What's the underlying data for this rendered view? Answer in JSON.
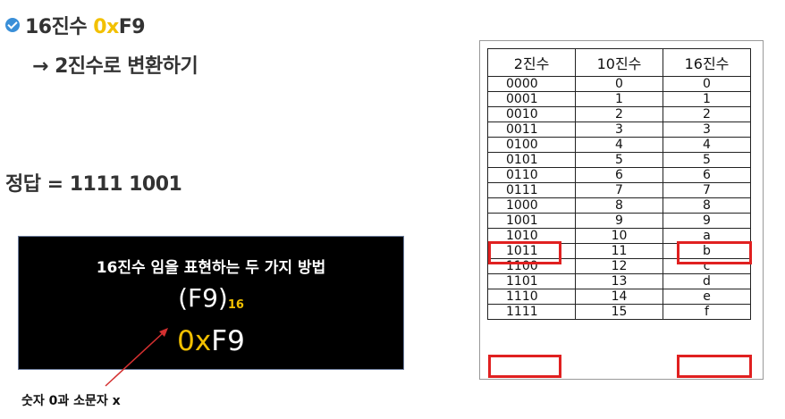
{
  "title": {
    "num": "16진수 ",
    "prefix": "0x",
    "rest": "F9"
  },
  "subtitle": "→ 2진수로 변환하기",
  "answer": "정답 = 1111 1001",
  "box": {
    "heading": "16진수 임을 표현하는 두 가지 방법",
    "notation1_main": "(F9)",
    "notation1_sub": "16",
    "notation2_prefix": "0x",
    "notation2_rest": "F9"
  },
  "caption": "숫자 0과 소문자 x",
  "table": {
    "headers": [
      "2진수",
      "10진수",
      "16진수"
    ],
    "rows": [
      [
        "0000",
        "0",
        "0"
      ],
      [
        "0001",
        "1",
        "1"
      ],
      [
        "0010",
        "2",
        "2"
      ],
      [
        "0011",
        "3",
        "3"
      ],
      [
        "0100",
        "4",
        "4"
      ],
      [
        "0101",
        "5",
        "5"
      ],
      [
        "0110",
        "6",
        "6"
      ],
      [
        "0111",
        "7",
        "7"
      ],
      [
        "1000",
        "8",
        "8"
      ],
      [
        "1001",
        "9",
        "9"
      ],
      [
        "1010",
        "10",
        "a"
      ],
      [
        "1011",
        "11",
        "b"
      ],
      [
        "1100",
        "12",
        "c"
      ],
      [
        "1101",
        "13",
        "d"
      ],
      [
        "1110",
        "14",
        "e"
      ],
      [
        "1111",
        "15",
        "f"
      ]
    ],
    "highlighted_rows": [
      "1001",
      "1111"
    ]
  },
  "colors": {
    "accent": "#f2c000",
    "highlight_box": "#e02020",
    "check": "#3a8fd8"
  },
  "icons": {
    "bullet": "check-circle-icon",
    "pointer": "arrow-icon"
  }
}
